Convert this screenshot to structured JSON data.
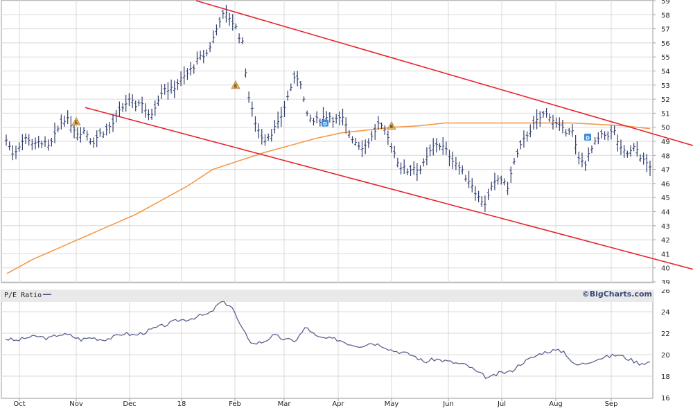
{
  "chart_data": [
    {
      "type": "ohlc",
      "ylim": [
        39,
        59
      ],
      "y_ticks": [
        39,
        40,
        41,
        42,
        43,
        44,
        45,
        46,
        47,
        48,
        49,
        50,
        51,
        52,
        53,
        54,
        55,
        56,
        57,
        58,
        59
      ],
      "x_ticks": [
        "Oct",
        "Nov",
        "Dec",
        "18",
        "Feb",
        "Mar",
        "Apr",
        "May",
        "Jun",
        "Jul",
        "Aug",
        "Sep"
      ],
      "price_path": [
        49.1,
        48.1,
        48.9,
        49.3,
        48.7,
        49.0,
        48.5,
        49.6,
        50.7,
        50.3,
        49.6,
        49.8,
        48.9,
        49.5,
        49.8,
        50.3,
        51.2,
        51.9,
        51.6,
        51.8,
        50.6,
        51.8,
        52.9,
        52.6,
        53.2,
        53.6,
        54.2,
        54.9,
        55.2,
        56.4,
        57.9,
        58.0,
        57.2,
        56.0,
        51.8,
        50.1,
        49.1,
        49.6,
        50.2,
        51.6,
        53.2,
        53.7,
        50.8,
        50.4,
        50.6,
        50.9,
        50.5,
        50.6,
        49.5,
        48.9,
        48.6,
        49.2,
        50.2,
        49.6,
        48.5,
        47.3,
        46.9,
        47.2,
        47.0,
        48.0,
        48.9,
        48.6,
        48.0,
        47.4,
        46.6,
        46.1,
        45.0,
        44.6,
        45.8,
        46.5,
        45.6,
        47.5,
        48.7,
        49.7,
        50.3,
        50.9,
        50.9,
        50.1,
        49.7,
        50.0,
        47.7,
        47.5,
        48.6,
        49.3,
        49.5,
        49.7,
        48.3,
        48.1,
        48.6,
        47.6,
        47.3
      ],
      "moving_average": [
        39.6,
        40.6,
        41.4,
        42.2,
        43.0,
        43.8,
        44.8,
        45.8,
        47.0,
        47.6,
        48.2,
        48.7,
        49.2,
        49.6,
        49.8,
        50.0,
        50.1,
        50.3,
        50.3,
        50.3,
        50.3,
        50.3,
        50.3,
        50.2,
        50.1,
        49.9
      ],
      "trendline_color": "#e8232f",
      "moving_average_color": "#f39a4a",
      "bar_color": "#2e3b6b",
      "event_markers": [
        {
          "kind": "earnings",
          "label": "E",
          "date": "Nov",
          "price": 50.4
        },
        {
          "kind": "earnings",
          "label": "E",
          "date": "Feb",
          "price": 53.0
        },
        {
          "kind": "dividend",
          "label": "D",
          "date": "Mar",
          "price": 50.3
        },
        {
          "kind": "earnings",
          "label": "E",
          "date": "May",
          "price": 50.1
        },
        {
          "kind": "dividend",
          "label": "D",
          "date": "Aug",
          "price": 49.3
        }
      ]
    },
    {
      "type": "line",
      "legend": "P/E Ratio",
      "ylim": [
        16,
        26
      ],
      "y_ticks": [
        16,
        18,
        20,
        22,
        24,
        26
      ],
      "x_ticks": [
        "Oct",
        "Nov",
        "Dec",
        "18",
        "Feb",
        "Mar",
        "Apr",
        "May",
        "Jun",
        "Jul",
        "Aug",
        "Sep"
      ],
      "values": [
        21.5,
        21.3,
        21.6,
        21.7,
        21.5,
        21.9,
        21.8,
        21.4,
        21.6,
        21.4,
        21.6,
        22.0,
        21.8,
        22.1,
        22.5,
        22.8,
        23.2,
        23.3,
        23.6,
        23.8,
        24.9,
        24.6,
        22.4,
        21.0,
        21.2,
        21.8,
        21.4,
        21.3,
        22.6,
        21.6,
        21.5,
        21.4,
        21.0,
        20.8,
        21.1,
        20.9,
        20.4,
        20.2,
        19.9,
        19.3,
        19.6,
        19.4,
        19.2,
        19.0,
        18.3,
        17.8,
        18.3,
        18.4,
        19.2,
        19.7,
        20.2,
        20.4,
        20.3,
        19.0,
        19.2,
        19.6,
        19.8,
        20.0,
        19.6,
        19.2,
        19.3
      ],
      "line_color": "#5a608f"
    }
  ],
  "legend": {
    "pe_label": "P/E Ratio"
  },
  "branding": {
    "text": "©BigCharts.com"
  }
}
